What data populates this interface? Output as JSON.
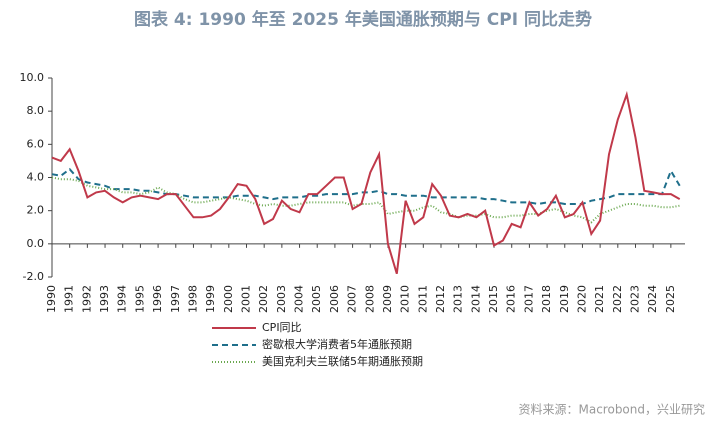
{
  "chart_data": {
    "type": "line",
    "title": "图表 4:  1990 年至 2025 年美国通胀预期与 CPI 同比走势",
    "source": "资料来源：Macrobond，兴业研究",
    "x": [
      1990.0,
      1990.5,
      1991.0,
      1991.5,
      1992.0,
      1992.5,
      1993.0,
      1993.5,
      1994.0,
      1994.5,
      1995.0,
      1995.5,
      1996.0,
      1996.5,
      1997.0,
      1997.5,
      1998.0,
      1998.5,
      1999.0,
      1999.5,
      2000.0,
      2000.5,
      2001.0,
      2001.5,
      2002.0,
      2002.5,
      2003.0,
      2003.5,
      2004.0,
      2004.5,
      2005.0,
      2005.5,
      2006.0,
      2006.5,
      2007.0,
      2007.5,
      2008.0,
      2008.5,
      2009.0,
      2009.5,
      2010.0,
      2010.5,
      2011.0,
      2011.5,
      2012.0,
      2012.5,
      2013.0,
      2013.5,
      2014.0,
      2014.5,
      2015.0,
      2015.5,
      2016.0,
      2016.5,
      2017.0,
      2017.5,
      2018.0,
      2018.5,
      2019.0,
      2019.5,
      2020.0,
      2020.5,
      2021.0,
      2021.5,
      2022.0,
      2022.5,
      2023.0,
      2023.5,
      2024.0,
      2024.5,
      2025.0,
      2025.5
    ],
    "series": [
      {
        "name": "CPI同比",
        "color": "#c0394a",
        "dash": "none",
        "values": [
          5.2,
          5.0,
          5.7,
          4.4,
          2.8,
          3.1,
          3.2,
          2.8,
          2.5,
          2.8,
          2.9,
          2.8,
          2.7,
          3.0,
          3.0,
          2.3,
          1.6,
          1.6,
          1.7,
          2.1,
          2.8,
          3.6,
          3.5,
          2.7,
          1.2,
          1.5,
          2.6,
          2.1,
          1.9,
          3.0,
          3.0,
          3.5,
          4.0,
          4.0,
          2.1,
          2.4,
          4.3,
          5.4,
          0.0,
          -1.8,
          2.6,
          1.2,
          1.6,
          3.6,
          2.9,
          1.7,
          1.6,
          1.8,
          1.6,
          2.0,
          -0.1,
          0.2,
          1.2,
          1.0,
          2.5,
          1.7,
          2.1,
          2.9,
          1.6,
          1.8,
          2.5,
          0.6,
          1.4,
          5.4,
          7.5,
          9.0,
          6.4,
          3.2,
          3.1,
          3.0,
          3.0,
          2.7
        ]
      },
      {
        "name": "密歇根大学消费者5年通胀预期",
        "color": "#1f6f8b",
        "dash": "6 4",
        "values": [
          4.2,
          4.1,
          4.5,
          3.9,
          3.7,
          3.6,
          3.5,
          3.3,
          3.3,
          3.3,
          3.2,
          3.2,
          3.1,
          3.0,
          3.0,
          2.9,
          2.8,
          2.8,
          2.8,
          2.8,
          2.8,
          2.9,
          2.9,
          2.9,
          2.8,
          2.7,
          2.8,
          2.8,
          2.8,
          2.9,
          2.9,
          3.0,
          3.0,
          3.0,
          3.0,
          3.1,
          3.1,
          3.2,
          3.0,
          3.0,
          2.9,
          2.9,
          2.9,
          2.8,
          2.8,
          2.8,
          2.8,
          2.8,
          2.8,
          2.7,
          2.7,
          2.6,
          2.5,
          2.5,
          2.5,
          2.4,
          2.5,
          2.5,
          2.4,
          2.4,
          2.4,
          2.6,
          2.7,
          2.8,
          3.0,
          3.0,
          3.0,
          3.0,
          3.0,
          3.0,
          4.4,
          3.5
        ]
      },
      {
        "name": "美国克利夫兰联储5年期通胀预期",
        "color": "#6aa84f",
        "dash": "1 2",
        "values": [
          4.0,
          3.9,
          3.9,
          3.8,
          3.5,
          3.4,
          3.3,
          3.3,
          3.1,
          3.1,
          3.0,
          3.1,
          3.4,
          3.1,
          3.0,
          2.7,
          2.5,
          2.5,
          2.6,
          2.7,
          2.8,
          2.7,
          2.6,
          2.4,
          2.3,
          2.4,
          2.3,
          2.3,
          2.4,
          2.5,
          2.5,
          2.5,
          2.5,
          2.5,
          2.3,
          2.4,
          2.4,
          2.5,
          1.8,
          1.9,
          2.0,
          2.0,
          2.2,
          2.3,
          1.9,
          1.8,
          1.6,
          1.7,
          1.7,
          1.8,
          1.6,
          1.6,
          1.7,
          1.7,
          1.8,
          1.8,
          2.0,
          2.1,
          1.9,
          1.7,
          1.6,
          1.3,
          1.8,
          2.0,
          2.2,
          2.4,
          2.4,
          2.3,
          2.3,
          2.2,
          2.2,
          2.3
        ]
      }
    ],
    "xlim": [
      1990,
      2025.8
    ],
    "xticks": [
      1990,
      1991,
      1992,
      1993,
      1994,
      1995,
      1996,
      1997,
      1998,
      1999,
      2000,
      2001,
      2002,
      2003,
      2004,
      2005,
      2006,
      2007,
      2008,
      2009,
      2010,
      2011,
      2012,
      2013,
      2014,
      2015,
      2016,
      2017,
      2018,
      2019,
      2020,
      2021,
      2022,
      2023,
      2024,
      2025
    ],
    "ylim": [
      -2,
      10
    ],
    "yticks": [
      {
        "value": -2,
        "label": "-2.0"
      },
      {
        "value": 0,
        "label": "0.0"
      },
      {
        "value": 2,
        "label": "2.0"
      },
      {
        "value": 4,
        "label": "4.0"
      },
      {
        "value": 6,
        "label": "6.0"
      },
      {
        "value": 8,
        "label": "8.0"
      },
      {
        "value": 10,
        "label": "10.0"
      }
    ]
  }
}
